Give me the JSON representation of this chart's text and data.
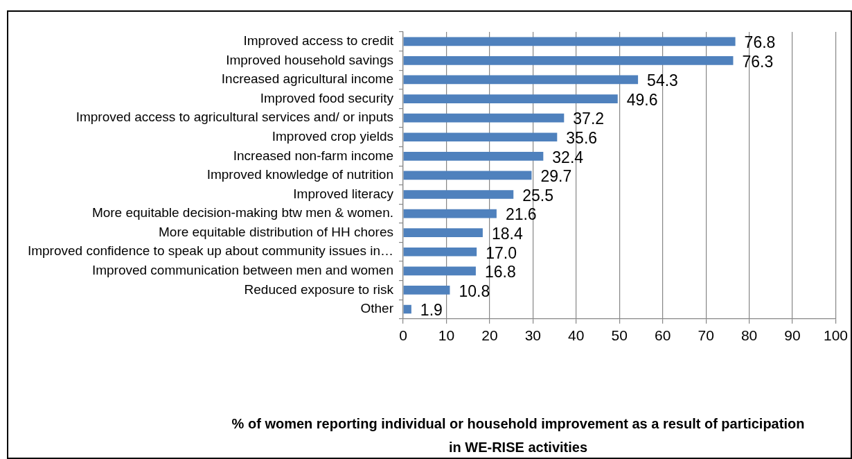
{
  "chart_data": {
    "type": "bar",
    "orientation": "horizontal",
    "title": "% of women reporting individual or household improvement as a result of participation in WE-RISE activities",
    "categories": [
      "Improved access to credit",
      "Improved household savings",
      "Increased agricultural income",
      "Improved food security",
      "Improved access to agricultural services and/ or inputs",
      "Improved crop yields",
      "Increased non-farm income",
      "Improved knowledge of nutrition",
      "Improved literacy",
      "More equitable decision-making btw men & women.",
      "More equitable distribution of HH chores",
      "Improved confidence to speak up about community issues in…",
      "Improved communication between men and women",
      "Reduced exposure to risk",
      "Other"
    ],
    "values": [
      76.8,
      76.3,
      54.3,
      49.6,
      37.2,
      35.6,
      32.4,
      29.7,
      25.5,
      21.6,
      18.4,
      17.0,
      16.8,
      10.8,
      1.9
    ],
    "value_labels": [
      "76.8",
      "76.3",
      "54.3",
      "49.6",
      "37.2",
      "35.6",
      "32.4",
      "29.7",
      "25.5",
      "21.6",
      "18.4",
      "17.0",
      "16.8",
      "10.8",
      "1.9"
    ],
    "color": "#4f81bd",
    "xlim": [
      0,
      100
    ],
    "xticks": [
      0,
      10,
      20,
      30,
      40,
      50,
      60,
      70,
      80,
      90,
      100
    ],
    "grid": "x"
  }
}
